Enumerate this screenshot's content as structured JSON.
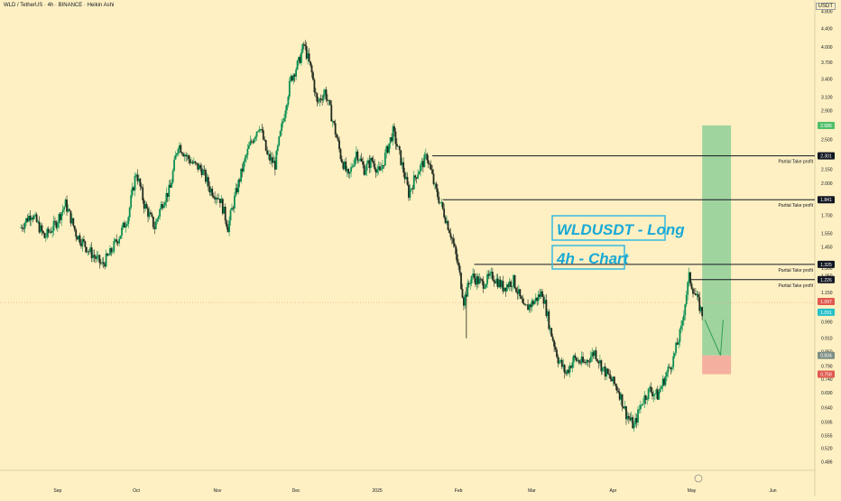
{
  "header": {
    "symbol_line": "WLD / TetherUS · 4h · BINANCE · Heikin Ashi",
    "currency": "USDT"
  },
  "annotations": {
    "title_box_1": "WLDUSDT - Long",
    "title_box_2": "4h - Chart",
    "take_profit_label": "Partial Take profit"
  },
  "colors": {
    "background": "#fef0c2",
    "candle_up": "#0c8f54",
    "candle_down": "#1f2a1f",
    "profit_zone": "#8fcf98",
    "stop_zone": "#f3a79a",
    "annotation_text": "#19a9d6",
    "annotation_border": "#35b9e0",
    "line": "#131722",
    "price_tag_red": "#e05a4f",
    "price_tag_teal": "#26c0c9",
    "price_tag_green": "#4fbf6b",
    "price_tag_gray": "#7f8f85",
    "price_tag_dark": "#131722"
  },
  "chart_data": {
    "type": "candlestick",
    "y_scale": "log",
    "ylim": [
      0.465,
      4.9
    ],
    "x_axis_labels": [
      "Sep",
      "Oct",
      "Nov",
      "Dec",
      "2025",
      "Feb",
      "Mar",
      "Apr",
      "May",
      "Jun"
    ],
    "y_axis_labels": [
      "4.800",
      "4.400",
      "4.000",
      "3.700",
      "3.400",
      "3.100",
      "2.900",
      "2.500",
      "2.150",
      "2.000",
      "1.700",
      "1.550",
      "1.450",
      "1.300",
      "1.250",
      "1.150",
      "0.990",
      "0.910",
      "0.850",
      "0.790",
      "0.740",
      "0.690",
      "0.640",
      "0.595",
      "0.555",
      "0.520",
      "0.486"
    ],
    "price_path": [
      [
        "2024-08-18",
        1.6
      ],
      [
        "2024-08-22",
        1.72
      ],
      [
        "2024-08-27",
        1.52
      ],
      [
        "2024-08-31",
        1.62
      ],
      [
        "2024-09-04",
        1.8
      ],
      [
        "2024-09-08",
        1.55
      ],
      [
        "2024-09-13",
        1.42
      ],
      [
        "2024-09-18",
        1.32
      ],
      [
        "2024-09-21",
        1.4
      ],
      [
        "2024-09-25",
        1.55
      ],
      [
        "2024-09-28",
        1.7
      ],
      [
        "2024-10-01",
        2.12
      ],
      [
        "2024-10-04",
        1.8
      ],
      [
        "2024-10-08",
        1.6
      ],
      [
        "2024-10-11",
        1.82
      ],
      [
        "2024-10-14",
        1.95
      ],
      [
        "2024-10-17",
        2.45
      ],
      [
        "2024-10-20",
        2.3
      ],
      [
        "2024-10-23",
        2.2
      ],
      [
        "2024-10-26",
        2.15
      ],
      [
        "2024-10-29",
        1.95
      ],
      [
        "2024-11-02",
        1.85
      ],
      [
        "2024-11-05",
        1.6
      ],
      [
        "2024-11-09",
        2.0
      ],
      [
        "2024-11-13",
        2.4
      ],
      [
        "2024-11-17",
        2.7
      ],
      [
        "2024-11-20",
        2.3
      ],
      [
        "2024-11-23",
        2.2
      ],
      [
        "2024-11-26",
        2.75
      ],
      [
        "2024-11-29",
        3.4
      ],
      [
        "2024-12-02",
        3.7
      ],
      [
        "2024-12-04",
        4.05
      ],
      [
        "2024-12-07",
        3.5
      ],
      [
        "2024-12-09",
        3.0
      ],
      [
        "2024-12-12",
        3.2
      ],
      [
        "2024-12-15",
        2.75
      ],
      [
        "2024-12-18",
        2.3
      ],
      [
        "2024-12-21",
        2.05
      ],
      [
        "2024-12-24",
        2.35
      ],
      [
        "2024-12-27",
        2.15
      ],
      [
        "2024-12-30",
        2.25
      ],
      [
        "2025-01-02",
        2.1
      ],
      [
        "2025-01-05",
        2.4
      ],
      [
        "2025-01-07",
        2.6
      ],
      [
        "2025-01-10",
        2.25
      ],
      [
        "2025-01-13",
        1.9
      ],
      [
        "2025-01-16",
        2.1
      ],
      [
        "2025-01-20",
        2.3
      ],
      [
        "2025-01-23",
        1.95
      ],
      [
        "2025-01-26",
        1.75
      ],
      [
        "2025-01-29",
        1.55
      ],
      [
        "2025-02-01",
        1.3
      ],
      [
        "2025-02-03",
        1.1
      ],
      [
        "2025-02-06",
        1.25
      ],
      [
        "2025-02-10",
        1.2
      ],
      [
        "2025-02-14",
        1.25
      ],
      [
        "2025-02-18",
        1.18
      ],
      [
        "2025-02-22",
        1.22
      ],
      [
        "2025-02-26",
        1.05
      ],
      [
        "2025-03-02",
        1.1
      ],
      [
        "2025-03-05",
        1.15
      ],
      [
        "2025-03-08",
        0.95
      ],
      [
        "2025-03-11",
        0.82
      ],
      [
        "2025-03-14",
        0.76
      ],
      [
        "2025-03-17",
        0.82
      ],
      [
        "2025-03-21",
        0.8
      ],
      [
        "2025-03-25",
        0.85
      ],
      [
        "2025-03-28",
        0.78
      ],
      [
        "2025-03-31",
        0.74
      ],
      [
        "2025-04-03",
        0.7
      ],
      [
        "2025-04-06",
        0.62
      ],
      [
        "2025-04-09",
        0.58
      ],
      [
        "2025-04-12",
        0.66
      ],
      [
        "2025-04-15",
        0.7
      ],
      [
        "2025-04-18",
        0.68
      ],
      [
        "2025-04-21",
        0.75
      ],
      [
        "2025-04-24",
        0.82
      ],
      [
        "2025-04-27",
        0.95
      ],
      [
        "2025-04-30",
        1.24
      ],
      [
        "2025-05-02",
        1.15
      ],
      [
        "2025-05-05",
        1.03
      ]
    ],
    "levels": [
      {
        "price": 2.301,
        "label": "2.301",
        "note": "Partial Take profit"
      },
      {
        "price": 1.841,
        "label": "1.841",
        "note": "Partial Take profit"
      },
      {
        "price": 1.325,
        "label": "1.325",
        "note": "Partial Take profit"
      },
      {
        "price": 1.226,
        "label": "1.226",
        "note": "Partial Take profit"
      }
    ],
    "price_tags": [
      {
        "price": 2.686,
        "label": "2.686",
        "color": "#4fbf6b"
      },
      {
        "price": 1.097,
        "label": "1.097",
        "color": "#e05a4f"
      },
      {
        "price": 1.039,
        "label": "1.091",
        "color": "#26c0c9"
      },
      {
        "price": 0.834,
        "label": "0.834",
        "color": "#7f8f85"
      },
      {
        "price": 0.758,
        "label": "0.758",
        "color": "#e05a4f"
      }
    ],
    "current_price": 1.091,
    "position": {
      "entry": 0.834,
      "stop": 0.758,
      "target": 2.686,
      "start": "2025-05-05",
      "end": "2025-05-16"
    },
    "projection": [
      [
        "2025-05-06",
        1.0
      ],
      [
        "2025-05-12",
        0.834
      ],
      [
        "2025-05-13",
        1.0
      ]
    ]
  }
}
